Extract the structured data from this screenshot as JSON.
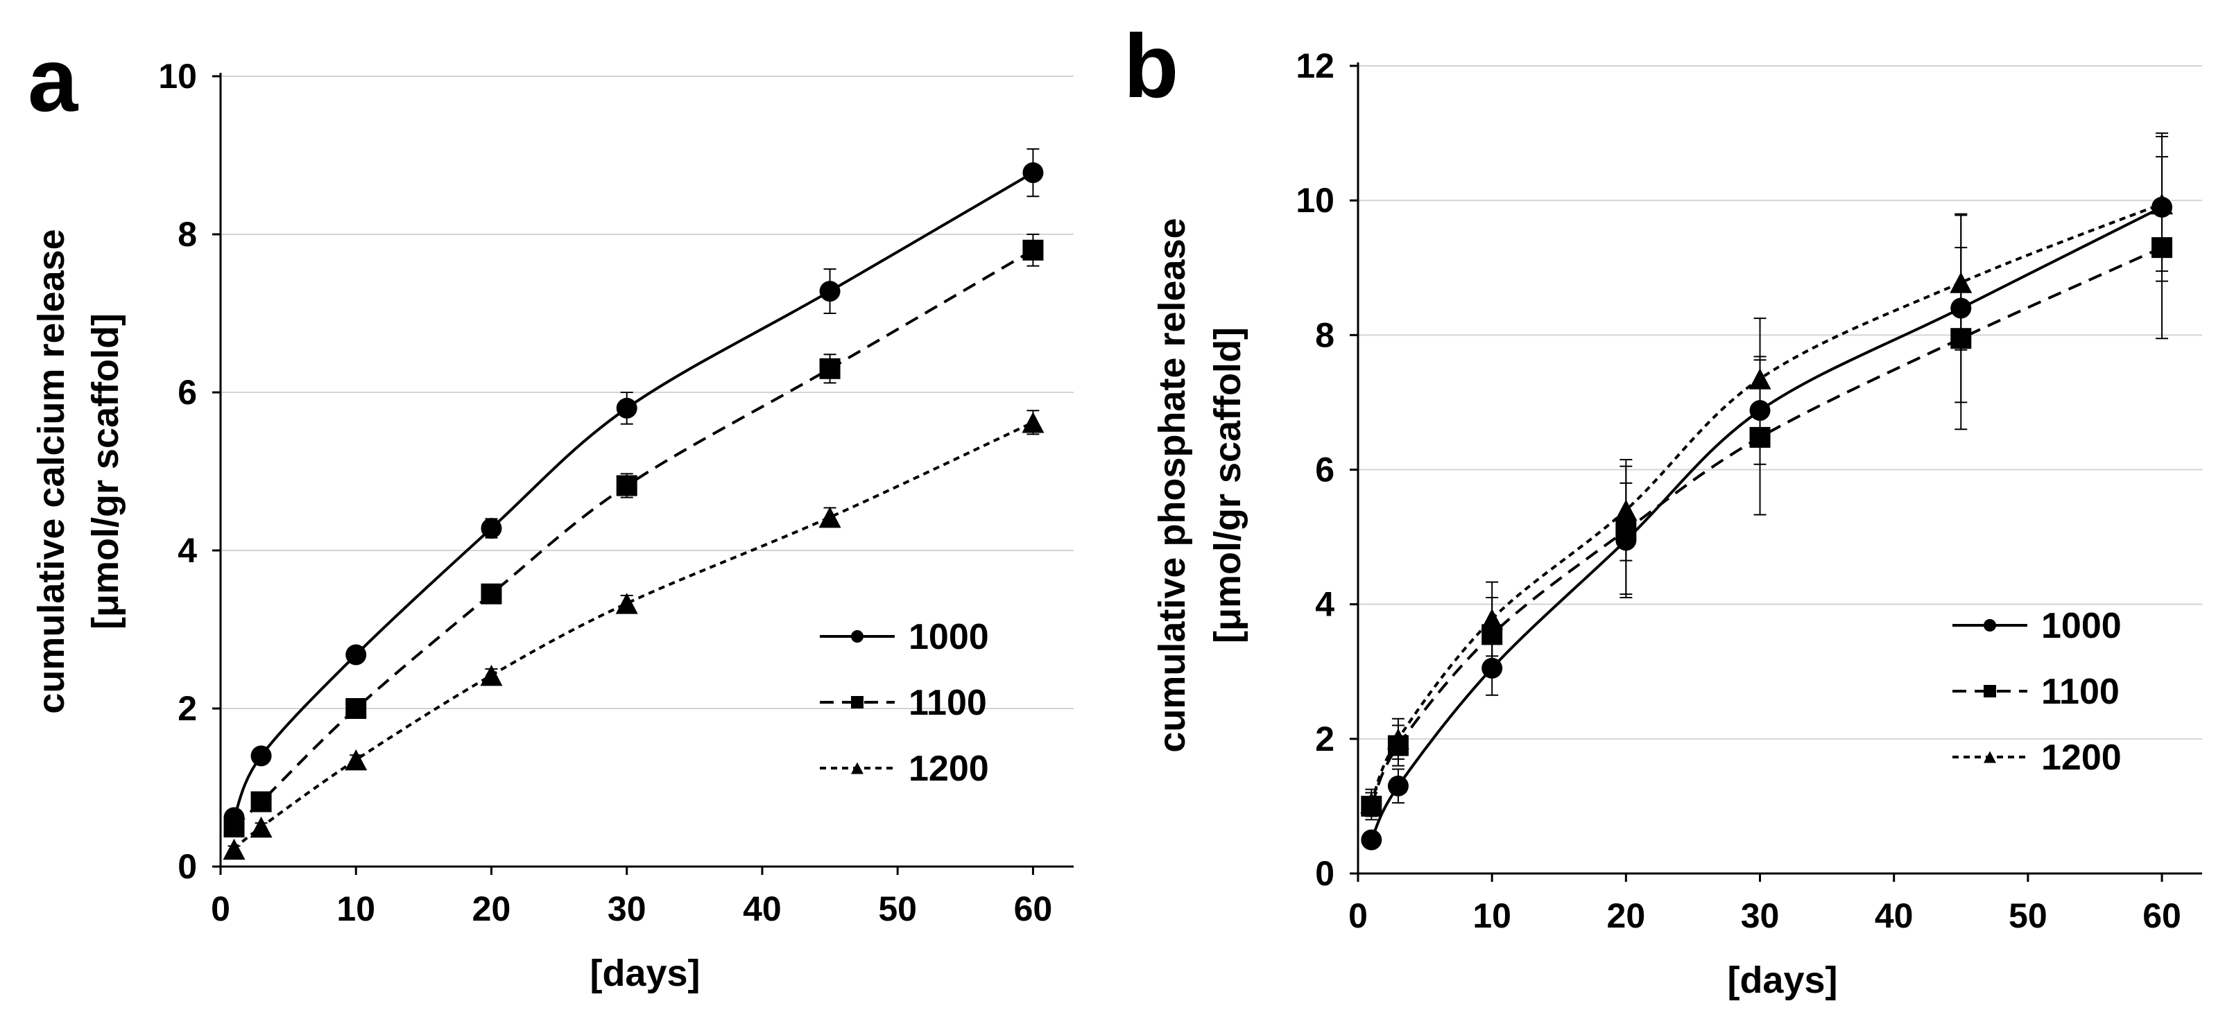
{
  "chart_data": [
    {
      "type": "line",
      "panel": "a",
      "title": "",
      "xlabel": "[days]",
      "ylabel_line1": "cumulative calcium release",
      "ylabel_line2": "[μmol/gr scaffold]",
      "xlim": [
        0,
        63
      ],
      "ylim": [
        0,
        10
      ],
      "xticks": [
        0,
        10,
        20,
        30,
        40,
        50,
        60
      ],
      "yticks": [
        0,
        2,
        4,
        6,
        8,
        10
      ],
      "grid": "horizontal",
      "legend_position": "bottom-right",
      "x": [
        1,
        3,
        10,
        20,
        30,
        45,
        60
      ],
      "series": [
        {
          "name": "1000",
          "marker": "circle",
          "dash": "solid",
          "values": [
            0.62,
            1.4,
            2.68,
            4.28,
            5.8,
            7.28,
            8.78
          ],
          "errors": [
            0.05,
            0.08,
            0.08,
            0.12,
            0.2,
            0.28,
            0.3
          ]
        },
        {
          "name": "1100",
          "marker": "square",
          "dash": "dashed",
          "values": [
            0.5,
            0.82,
            2.0,
            3.45,
            4.82,
            6.3,
            7.8
          ],
          "errors": [
            0.05,
            0.06,
            0.07,
            0.1,
            0.15,
            0.18,
            0.2
          ]
        },
        {
          "name": "1200",
          "marker": "triangle",
          "dash": "dotted",
          "values": [
            0.22,
            0.5,
            1.35,
            2.42,
            3.33,
            4.42,
            5.62
          ],
          "errors": [
            0.04,
            0.05,
            0.06,
            0.08,
            0.1,
            0.12,
            0.15
          ]
        }
      ]
    },
    {
      "type": "line",
      "panel": "b",
      "title": "",
      "xlabel": "[days]",
      "ylabel_line1": "cumulative phosphate release",
      "ylabel_line2": "[μmol/gr scaffold]",
      "xlim": [
        0,
        63
      ],
      "ylim": [
        0,
        12
      ],
      "xticks": [
        0,
        10,
        20,
        30,
        40,
        50,
        60
      ],
      "yticks": [
        0,
        2,
        4,
        6,
        8,
        10,
        12
      ],
      "grid": "horizontal",
      "legend_position": "bottom-right",
      "x": [
        1,
        3,
        10,
        20,
        30,
        45,
        60
      ],
      "series": [
        {
          "name": "1000",
          "marker": "circle",
          "dash": "solid",
          "values": [
            0.5,
            1.3,
            3.05,
            4.95,
            6.88,
            8.4,
            9.9
          ],
          "errors": [
            0.1,
            0.25,
            0.4,
            0.85,
            0.8,
            1.4,
            1.1
          ]
        },
        {
          "name": "1100",
          "marker": "square",
          "dash": "dashed",
          "values": [
            1.0,
            1.9,
            3.55,
            5.1,
            6.48,
            7.95,
            9.3
          ],
          "errors": [
            0.2,
            0.3,
            0.55,
            0.95,
            1.15,
            1.35,
            1.35
          ]
        },
        {
          "name": "1200",
          "marker": "triangle",
          "dash": "dotted",
          "values": [
            1.05,
            2.0,
            3.78,
            5.4,
            7.35,
            8.78,
            9.95
          ],
          "errors": [
            0.2,
            0.3,
            0.55,
            0.75,
            0.9,
            1.0,
            1.0
          ]
        }
      ]
    }
  ]
}
